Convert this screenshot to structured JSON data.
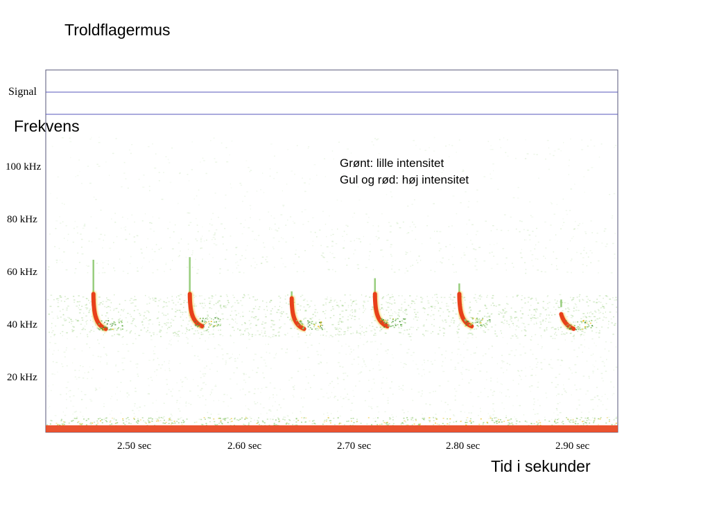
{
  "title": "Troldflagermus",
  "signal_label": "Signal",
  "legend": {
    "line1": "Grønt: lille intensitet",
    "line2": "Gul og rød: høj intensitet"
  },
  "colors": {
    "low_intensity": "#8cc86e",
    "high_intensity_yellow": "#e8c020",
    "high_intensity_red": "#e8401a",
    "signal_line": "#5555bb"
  },
  "chart_data": {
    "type": "heatmap",
    "title": "Troldflagermus",
    "ylabel": "Frekvens",
    "xlabel": "Tid i sekunder",
    "y_ticks": [
      "100 kHz",
      "80 kHz",
      "60 kHz",
      "40 kHz",
      "20 kHz"
    ],
    "y_tick_values": [
      100,
      80,
      60,
      40,
      20
    ],
    "x_ticks": [
      "2.50 sec",
      "2.60 sec",
      "2.70 sec",
      "2.80 sec",
      "2.90 sec"
    ],
    "x_tick_values": [
      2.5,
      2.6,
      2.7,
      2.8,
      2.9
    ],
    "xlim": [
      2.435,
      2.96
    ],
    "ylim": [
      0,
      124
    ],
    "calls": [
      {
        "time": 2.465,
        "start_khz": 65,
        "end_khz": 39
      },
      {
        "time": 2.553,
        "start_khz": 66,
        "end_khz": 40
      },
      {
        "time": 2.646,
        "start_khz": 53,
        "end_khz": 39
      },
      {
        "time": 2.722,
        "start_khz": 58,
        "end_khz": 40
      },
      {
        "time": 2.799,
        "start_khz": 56,
        "end_khz": 40
      },
      {
        "time": 2.892,
        "start_khz": 47,
        "end_khz": 39
      }
    ],
    "noise_floor_khz": 1
  }
}
